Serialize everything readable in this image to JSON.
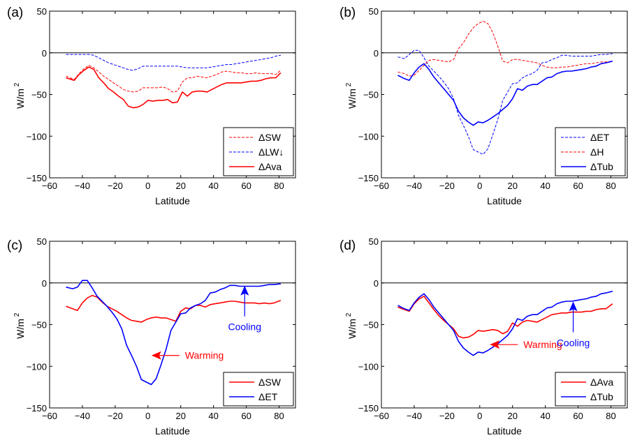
{
  "chart_data": [
    {
      "type": "line",
      "panel_label": "(a)",
      "xlabel": "Latitude",
      "ylabel": "W/m",
      "ylabel_sup": "2",
      "xlim": [
        -60,
        90
      ],
      "ylim": [
        -150,
        50
      ],
      "xticks": [
        -60,
        -40,
        -20,
        0,
        20,
        40,
        60,
        80
      ],
      "yticks": [
        -150,
        -100,
        -50,
        0,
        50
      ],
      "legend_position": "bottom-right",
      "colors": {
        "red": "#ff0000",
        "blue": "#0000ff"
      },
      "x": [
        -50,
        -45,
        -42,
        -39,
        -36,
        -33,
        -30,
        -27,
        -24,
        -21,
        -18,
        -15,
        -12,
        -9,
        -6,
        -3,
        0,
        3,
        6,
        9,
        12,
        15,
        18,
        21,
        24,
        27,
        30,
        33,
        36,
        39,
        42,
        45,
        48,
        51,
        54,
        57,
        60,
        63,
        66,
        69,
        72,
        75,
        78,
        81
      ],
      "series": [
        {
          "name": "ΔSW",
          "color": "#ff0000",
          "style": "dashed",
          "width": 1,
          "values": [
            -28,
            -32,
            -25,
            -19,
            -15,
            -18,
            -23,
            -28,
            -32,
            -36,
            -40,
            -44,
            -46,
            -47,
            -46,
            -42,
            -42,
            -42,
            -42,
            -41,
            -43,
            -47,
            -46,
            -35,
            -30,
            -30,
            -28,
            -29,
            -30,
            -28,
            -26,
            -23,
            -22,
            -23,
            -24,
            -24,
            -25,
            -25,
            -24,
            -25,
            -25,
            -25,
            -26,
            -21
          ]
        },
        {
          "name": "ΔLW↓",
          "color": "#0000ff",
          "style": "dashed",
          "width": 1,
          "values": [
            -2,
            -2,
            -2,
            -2,
            -2,
            -3,
            -6,
            -9,
            -12,
            -14,
            -16,
            -18,
            -20,
            -21,
            -19,
            -16,
            -16,
            -16,
            -16,
            -16,
            -16,
            -16,
            -16,
            -17,
            -18,
            -18,
            -18,
            -18,
            -18,
            -17,
            -16,
            -15,
            -14,
            -14,
            -13,
            -12,
            -11,
            -10,
            -9,
            -8,
            -7,
            -6,
            -4,
            -3
          ]
        },
        {
          "name": "ΔAva",
          "color": "#ff0000",
          "style": "solid",
          "width": 1.6,
          "values": [
            -30,
            -33,
            -26,
            -21,
            -17,
            -20,
            -30,
            -36,
            -43,
            -47,
            -52,
            -56,
            -64,
            -66,
            -65,
            -62,
            -57,
            -58,
            -57,
            -57,
            -56,
            -60,
            -59,
            -47,
            -52,
            -47,
            -46,
            -46,
            -47,
            -44,
            -41,
            -38,
            -36,
            -36,
            -36,
            -36,
            -35,
            -34,
            -34,
            -33,
            -31,
            -30,
            -30,
            -24
          ]
        }
      ]
    },
    {
      "type": "line",
      "panel_label": "(b)",
      "xlabel": "Latitude",
      "ylabel": "W/m",
      "ylabel_sup": "2",
      "xlim": [
        -60,
        90
      ],
      "ylim": [
        -150,
        50
      ],
      "xticks": [
        -60,
        -40,
        -20,
        0,
        20,
        40,
        60,
        80
      ],
      "yticks": [
        -150,
        -100,
        -50,
        0,
        50
      ],
      "legend_position": "bottom-right",
      "x": [
        -50,
        -46,
        -43,
        -40,
        -37,
        -34,
        -31,
        -28,
        -25,
        -22,
        -19,
        -16,
        -13,
        -10,
        -7,
        -4,
        -1,
        2,
        5,
        8,
        11,
        14,
        17,
        20,
        23,
        26,
        29,
        32,
        35,
        38,
        41,
        44,
        47,
        50,
        53,
        56,
        59,
        62,
        65,
        68,
        71,
        74,
        77,
        81
      ],
      "series": [
        {
          "name": "ΔET",
          "color": "#0000ff",
          "style": "dashed",
          "width": 1,
          "values": [
            -5,
            -7,
            -2,
            3,
            3,
            -6,
            -16,
            -22,
            -28,
            -35,
            -43,
            -55,
            -75,
            -87,
            -100,
            -116,
            -119,
            -122,
            -115,
            -98,
            -80,
            -57,
            -47,
            -37,
            -36,
            -30,
            -27,
            -25,
            -21,
            -12,
            -11,
            -8,
            -6,
            -3,
            -3,
            -4,
            -4,
            -4,
            -4,
            -4,
            -3,
            -2,
            -2,
            -1
          ]
        },
        {
          "name": "ΔH",
          "color": "#ff0000",
          "style": "dashed",
          "width": 1,
          "values": [
            -23,
            -25,
            -28,
            -27,
            -21,
            -15,
            -9,
            -8,
            -9,
            -10,
            -11,
            -8,
            5,
            12,
            22,
            30,
            35,
            38,
            35,
            24,
            8,
            -10,
            -12,
            -8,
            -8,
            -9,
            -10,
            -11,
            -12,
            -15,
            -17,
            -18,
            -18,
            -17,
            -17,
            -16,
            -15,
            -14,
            -13,
            -13,
            -12,
            -11,
            -11,
            -10
          ]
        },
        {
          "name": "ΔTub",
          "color": "#0000ff",
          "style": "solid",
          "width": 1.6,
          "values": [
            -27,
            -31,
            -33,
            -24,
            -17,
            -13,
            -20,
            -29,
            -36,
            -43,
            -50,
            -57,
            -70,
            -78,
            -83,
            -87,
            -83,
            -84,
            -81,
            -77,
            -73,
            -68,
            -63,
            -55,
            -43,
            -45,
            -40,
            -38,
            -38,
            -34,
            -30,
            -29,
            -25,
            -23,
            -22,
            -22,
            -21,
            -20,
            -19,
            -17,
            -16,
            -13,
            -12,
            -10
          ]
        }
      ]
    },
    {
      "type": "line",
      "panel_label": "(c)",
      "xlabel": "Latitude",
      "ylabel": "W/m",
      "ylabel_sup": "2",
      "xlim": [
        -60,
        90
      ],
      "ylim": [
        -150,
        50
      ],
      "xticks": [
        -60,
        -40,
        -20,
        0,
        20,
        40,
        60,
        80
      ],
      "yticks": [
        -150,
        -100,
        -50,
        0,
        50
      ],
      "legend_position": "bottom-right",
      "annotations": [
        {
          "text": "Warming",
          "color": "#ff0000",
          "arrow": "left",
          "x": 3,
          "y": -87
        },
        {
          "text": "Cooling",
          "color": "#0000ff",
          "arrow": "up",
          "x": 59,
          "y": -5
        }
      ],
      "x": [
        -50,
        -46,
        -43,
        -40,
        -37,
        -34,
        -31,
        -28,
        -25,
        -22,
        -19,
        -16,
        -13,
        -10,
        -7,
        -4,
        -1,
        2,
        5,
        8,
        11,
        14,
        17,
        20,
        23,
        26,
        29,
        32,
        35,
        38,
        41,
        44,
        47,
        50,
        53,
        56,
        59,
        62,
        65,
        68,
        71,
        74,
        77,
        81
      ],
      "series": [
        {
          "name": "ΔSW",
          "color": "#ff0000",
          "style": "solid",
          "width": 1.6,
          "values": [
            -28,
            -31,
            -33,
            -24,
            -18,
            -15,
            -17,
            -23,
            -28,
            -31,
            -34,
            -38,
            -42,
            -45,
            -46,
            -47,
            -44,
            -42,
            -41,
            -42,
            -42,
            -44,
            -46,
            -34,
            -30,
            -31,
            -27,
            -27,
            -29,
            -26,
            -25,
            -24,
            -23,
            -22,
            -22,
            -23,
            -24,
            -24,
            -24,
            -25,
            -24,
            -25,
            -24,
            -21
          ]
        },
        {
          "name": "ΔET",
          "color": "#0000ff",
          "style": "solid",
          "width": 1.6,
          "values": [
            -5,
            -7,
            -5,
            3,
            3,
            -6,
            -16,
            -22,
            -28,
            -35,
            -43,
            -55,
            -75,
            -87,
            -100,
            -116,
            -119,
            -122,
            -115,
            -98,
            -80,
            -57,
            -47,
            -37,
            -36,
            -30,
            -27,
            -25,
            -21,
            -12,
            -11,
            -8,
            -6,
            -3,
            -3,
            -4,
            -4,
            -4,
            -4,
            -4,
            -3,
            -2,
            -2,
            -1
          ]
        }
      ]
    },
    {
      "type": "line",
      "panel_label": "(d)",
      "xlabel": "Latitude",
      "ylabel": "W/m",
      "ylabel_sup": "2",
      "xlim": [
        -60,
        90
      ],
      "ylim": [
        -150,
        50
      ],
      "xticks": [
        -60,
        -40,
        -20,
        0,
        20,
        40,
        60,
        80
      ],
      "yticks": [
        -150,
        -100,
        -50,
        0,
        50
      ],
      "legend_position": "bottom-right",
      "annotations": [
        {
          "text": "Warming",
          "color": "#ff0000",
          "arrow": "left",
          "x": 7,
          "y": -74
        },
        {
          "text": "Cooling",
          "color": "#0000ff",
          "arrow": "up",
          "x": 57,
          "y": -24
        }
      ],
      "x": [
        -50,
        -46,
        -43,
        -40,
        -37,
        -34,
        -31,
        -28,
        -25,
        -22,
        -19,
        -16,
        -13,
        -10,
        -7,
        -4,
        -1,
        2,
        5,
        8,
        11,
        14,
        17,
        20,
        23,
        26,
        29,
        32,
        35,
        38,
        41,
        44,
        47,
        50,
        53,
        56,
        59,
        62,
        65,
        68,
        71,
        74,
        77,
        81
      ],
      "series": [
        {
          "name": "ΔAva",
          "color": "#ff0000",
          "style": "solid",
          "width": 1.6,
          "values": [
            -29,
            -32,
            -34,
            -25,
            -19,
            -16,
            -24,
            -32,
            -39,
            -45,
            -50,
            -55,
            -64,
            -66,
            -65,
            -62,
            -57,
            -58,
            -57,
            -56,
            -57,
            -61,
            -58,
            -48,
            -52,
            -47,
            -45,
            -46,
            -47,
            -44,
            -41,
            -38,
            -37,
            -36,
            -36,
            -35,
            -35,
            -35,
            -34,
            -34,
            -32,
            -31,
            -31,
            -25
          ]
        },
        {
          "name": "ΔTub",
          "color": "#0000ff",
          "style": "solid",
          "width": 1.6,
          "values": [
            -27,
            -31,
            -33,
            -24,
            -17,
            -13,
            -20,
            -29,
            -36,
            -43,
            -50,
            -57,
            -70,
            -78,
            -83,
            -87,
            -83,
            -84,
            -81,
            -77,
            -73,
            -68,
            -63,
            -55,
            -43,
            -45,
            -40,
            -38,
            -38,
            -34,
            -30,
            -29,
            -25,
            -23,
            -22,
            -22,
            -21,
            -20,
            -19,
            -17,
            -16,
            -13,
            -12,
            -10
          ]
        }
      ]
    }
  ]
}
